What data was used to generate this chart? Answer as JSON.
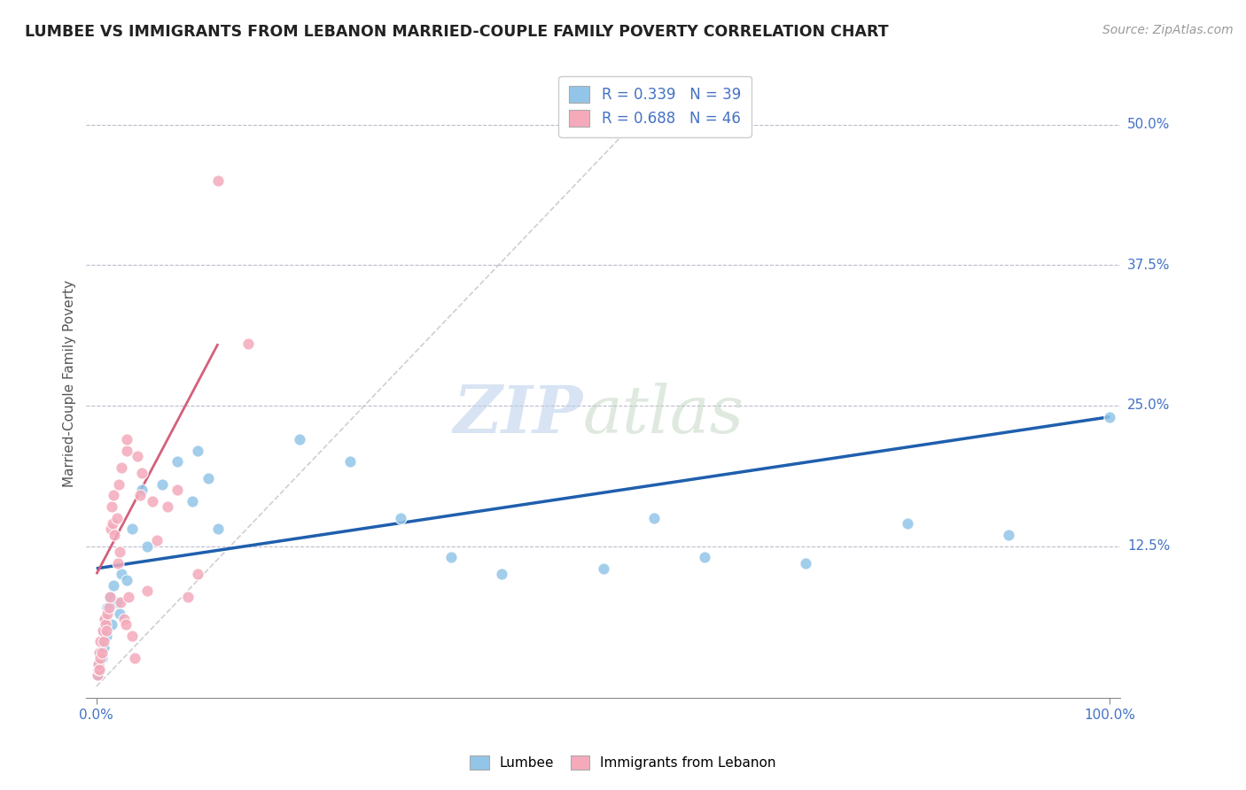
{
  "title": "LUMBEE VS IMMIGRANTS FROM LEBANON MARRIED-COUPLE FAMILY POVERTY CORRELATION CHART",
  "source": "Source: ZipAtlas.com",
  "ylabel": "Married-Couple Family Poverty",
  "watermark_zip": "ZIP",
  "watermark_atlas": "atlas",
  "xlim": [
    -1,
    101
  ],
  "ylim": [
    -1,
    55
  ],
  "ytick_labels": [
    "12.5%",
    "25.0%",
    "37.5%",
    "50.0%"
  ],
  "ytick_values": [
    12.5,
    25.0,
    37.5,
    50.0
  ],
  "legend_labels": [
    "Lumbee",
    "Immigrants from Lebanon"
  ],
  "lumbee_color": "#92C5E8",
  "lebanon_color": "#F4AABB",
  "lumbee_line_color": "#1F5FAD",
  "lebanon_line_color": "#D4607A",
  "lumbee_R": 0.339,
  "lumbee_N": 39,
  "lebanon_R": 0.688,
  "lebanon_N": 46,
  "grid_color": "#BBBBCC",
  "background_color": "#FFFFFF",
  "lumbee_x": [
    0.1,
    0.2,
    0.3,
    0.4,
    0.5,
    0.6,
    0.7,
    0.8,
    0.9,
    1.0,
    1.1,
    1.3,
    1.5,
    1.7,
    2.0,
    2.3,
    2.5,
    3.0,
    3.5,
    4.5,
    5.0,
    6.5,
    8.0,
    9.5,
    10.0,
    11.0,
    12.0,
    20.0,
    25.0,
    30.0,
    35.0,
    40.0,
    50.0,
    55.0,
    60.0,
    70.0,
    80.0,
    90.0,
    100.0
  ],
  "lumbee_y": [
    1.0,
    2.0,
    1.5,
    3.0,
    2.5,
    4.0,
    3.5,
    5.0,
    6.0,
    4.5,
    7.0,
    8.0,
    5.5,
    9.0,
    7.5,
    6.5,
    10.0,
    9.5,
    14.0,
    17.5,
    12.5,
    18.0,
    20.0,
    16.5,
    21.0,
    18.5,
    14.0,
    22.0,
    20.0,
    15.0,
    11.5,
    10.0,
    10.5,
    15.0,
    11.5,
    11.0,
    14.5,
    13.5,
    24.0
  ],
  "lebanon_x": [
    0.1,
    0.15,
    0.2,
    0.25,
    0.3,
    0.35,
    0.4,
    0.5,
    0.6,
    0.7,
    0.8,
    0.9,
    1.0,
    1.1,
    1.2,
    1.3,
    1.4,
    1.5,
    1.6,
    1.7,
    1.8,
    2.0,
    2.1,
    2.2,
    2.3,
    2.4,
    2.5,
    2.7,
    2.9,
    3.0,
    3.2,
    3.5,
    3.8,
    4.0,
    4.3,
    4.5,
    5.0,
    5.5,
    6.0,
    7.0,
    8.0,
    9.0,
    10.0,
    12.0,
    15.0,
    3.0
  ],
  "lebanon_y": [
    1.0,
    1.5,
    2.0,
    1.5,
    3.0,
    2.5,
    4.0,
    3.0,
    5.0,
    4.0,
    6.0,
    5.5,
    5.0,
    6.5,
    7.0,
    8.0,
    14.0,
    16.0,
    14.5,
    17.0,
    13.5,
    15.0,
    11.0,
    18.0,
    12.0,
    7.5,
    19.5,
    6.0,
    5.5,
    21.0,
    8.0,
    4.5,
    2.5,
    20.5,
    17.0,
    19.0,
    8.5,
    16.5,
    13.0,
    16.0,
    17.5,
    8.0,
    10.0,
    45.0,
    30.5,
    22.0
  ],
  "lumbee_line_x": [
    0,
    100
  ],
  "lumbee_line_y": [
    10.5,
    24.0
  ],
  "lebanon_line_x": [
    0,
    12
  ],
  "lebanon_line_y": [
    10.0,
    30.5
  ],
  "dash_line_x": [
    0,
    55
  ],
  "dash_line_y": [
    0,
    52
  ]
}
